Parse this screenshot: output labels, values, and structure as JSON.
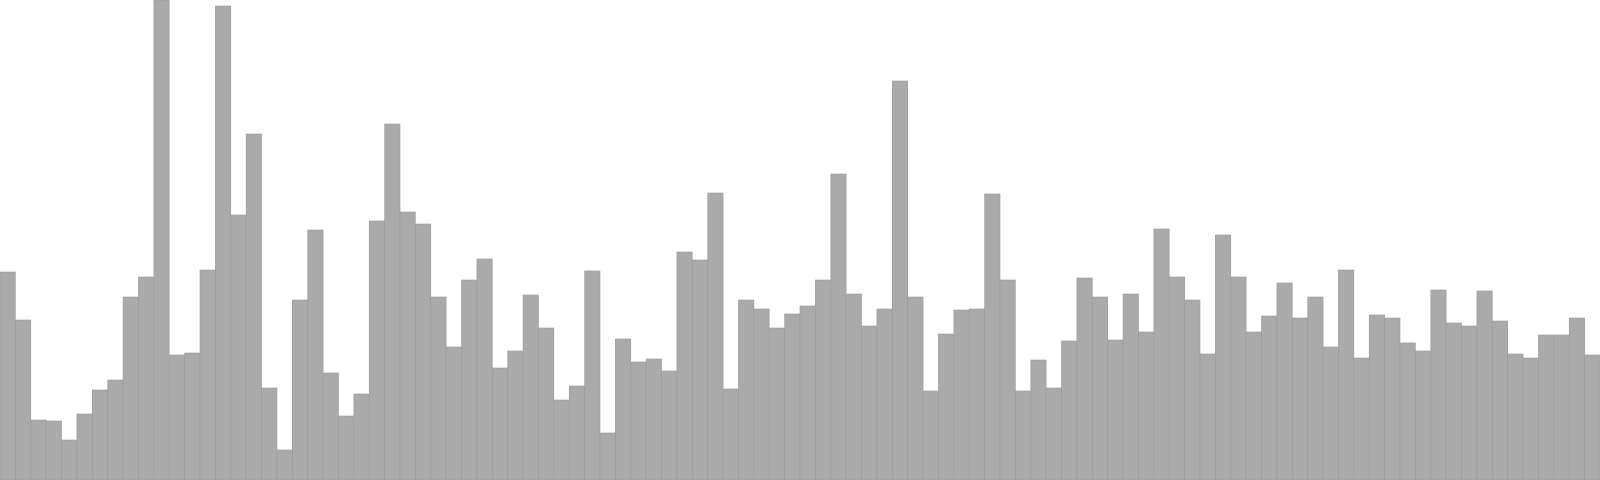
{
  "chart_data": {
    "type": "bar",
    "ylim": [
      0,
      480
    ],
    "grid": false,
    "legend": "none",
    "colors": {
      "bar_fill": "#aaaaaa",
      "bar_stroke": "#9a9a9a",
      "background": "#ffffff"
    },
    "values": [
      208,
      160,
      60,
      59,
      40,
      66,
      90,
      100,
      183,
      203,
      480,
      125,
      127,
      210,
      474,
      265,
      346,
      92,
      30,
      180,
      250,
      107,
      64,
      86,
      259,
      356,
      268,
      256,
      183,
      133,
      200,
      221,
      112,
      129,
      185,
      152,
      80,
      94,
      209,
      47,
      141,
      118,
      121,
      109,
      228,
      220,
      287,
      91,
      180,
      171,
      152,
      166,
      174,
      200,
      306,
      186,
      154,
      171,
      399,
      183,
      89,
      146,
      170,
      171,
      286,
      200,
      89,
      120,
      92,
      139,
      202,
      183,
      140,
      186,
      148,
      251,
      203,
      180,
      126,
      245,
      203,
      148,
      164,
      197,
      162,
      183,
      133,
      210,
      122,
      165,
      162,
      137,
      129,
      190,
      157,
      154,
      189,
      159,
      126,
      122,
      145,
      145,
      162,
      125
    ]
  }
}
